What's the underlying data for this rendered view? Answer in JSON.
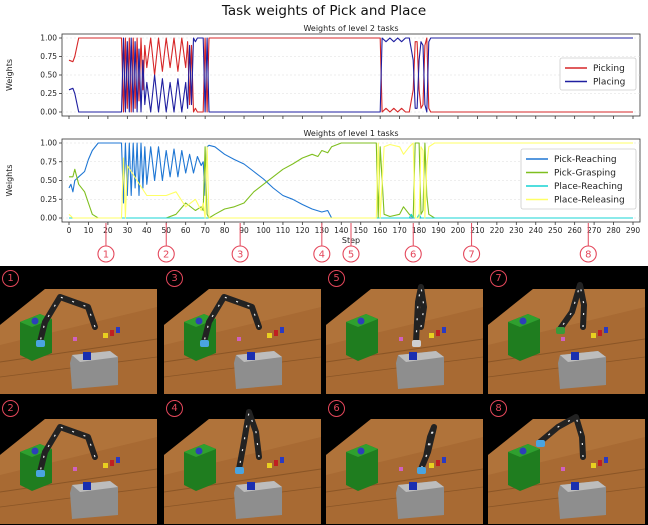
{
  "title": "Task weights of Pick and Place",
  "chart_data": [
    {
      "type": "line",
      "title": "Weights of level 2 tasks",
      "ylabel": "Weights",
      "ylim": [
        0,
        1
      ],
      "yticks": [
        "0.00",
        "0.25",
        "0.50",
        "0.75",
        "1.00"
      ],
      "xlim": [
        0,
        290
      ],
      "legend_position": "right",
      "series": [
        {
          "name": "Picking",
          "color": "#d62728",
          "x": [
            0,
            2,
            3,
            5,
            10,
            20,
            27,
            28,
            29,
            30,
            31,
            32,
            33,
            34,
            35,
            36,
            37,
            38,
            39,
            40,
            42,
            44,
            46,
            48,
            50,
            52,
            54,
            56,
            58,
            60,
            61,
            62,
            63,
            64,
            65,
            66,
            67,
            68,
            69,
            70,
            71,
            72,
            73,
            100,
            150,
            160,
            161,
            163,
            165,
            167,
            169,
            171,
            173,
            175,
            177,
            178,
            179,
            180,
            181,
            182,
            183,
            184,
            185,
            186,
            187,
            188,
            190,
            200,
            250,
            290
          ],
          "values": [
            0.7,
            0.68,
            0.75,
            1.0,
            1.0,
            1.0,
            1.0,
            0.0,
            1.0,
            0.05,
            1.0,
            0.0,
            1.0,
            0.05,
            1.0,
            0.15,
            1.0,
            0.3,
            0.9,
            0.6,
            1.0,
            0.5,
            1.0,
            0.55,
            1.0,
            0.6,
            1.0,
            0.55,
            1.0,
            0.6,
            0.95,
            0.1,
            0.9,
            0.0,
            0.05,
            0.0,
            0.0,
            0.0,
            0.0,
            1.0,
            0.0,
            1.0,
            1.0,
            1.0,
            1.0,
            1.0,
            0.0,
            0.05,
            0.0,
            0.05,
            0.0,
            0.05,
            0.0,
            0.0,
            0.3,
            0.95,
            0.95,
            0.3,
            0.05,
            0.1,
            0.9,
            1.0,
            0.05,
            0.0,
            0.0,
            0.0,
            0.0,
            0.0,
            0.0,
            0.0
          ]
        },
        {
          "name": "Placing",
          "color": "#1f1fa0",
          "x": [
            0,
            2,
            3,
            5,
            10,
            20,
            27,
            28,
            29,
            30,
            31,
            32,
            33,
            34,
            35,
            36,
            37,
            38,
            39,
            40,
            42,
            44,
            46,
            48,
            50,
            52,
            54,
            56,
            58,
            60,
            61,
            62,
            63,
            64,
            65,
            66,
            67,
            68,
            69,
            70,
            71,
            72,
            73,
            100,
            150,
            160,
            161,
            163,
            165,
            167,
            169,
            171,
            173,
            175,
            177,
            178,
            179,
            180,
            181,
            182,
            183,
            184,
            185,
            186,
            187,
            188,
            190,
            200,
            250,
            290
          ],
          "values": [
            0.3,
            0.32,
            0.25,
            0.0,
            0.0,
            0.0,
            0.0,
            1.0,
            0.0,
            0.95,
            0.0,
            1.0,
            0.0,
            0.95,
            0.0,
            0.85,
            0.0,
            0.7,
            0.1,
            0.4,
            0.0,
            0.5,
            0.0,
            0.45,
            0.0,
            0.4,
            0.0,
            0.45,
            0.0,
            0.4,
            0.05,
            0.9,
            0.1,
            1.0,
            0.95,
            1.0,
            1.0,
            1.0,
            1.0,
            0.0,
            1.0,
            0.0,
            0.0,
            0.0,
            0.0,
            0.0,
            1.0,
            0.95,
            1.0,
            0.95,
            1.0,
            0.95,
            1.0,
            1.0,
            0.7,
            0.05,
            0.05,
            0.7,
            0.95,
            0.9,
            0.1,
            0.0,
            0.95,
            1.0,
            1.0,
            1.0,
            1.0,
            1.0,
            1.0,
            1.0
          ]
        }
      ]
    },
    {
      "type": "line",
      "title": "Weights of level 1 tasks",
      "xlabel": "Step",
      "ylabel": "Weights",
      "ylim": [
        0,
        1
      ],
      "yticks": [
        "0.00",
        "0.25",
        "0.50",
        "0.75",
        "1.00"
      ],
      "xlim": [
        0,
        290
      ],
      "xticks": [
        0,
        10,
        20,
        30,
        40,
        50,
        60,
        70,
        80,
        90,
        100,
        110,
        120,
        130,
        140,
        150,
        160,
        170,
        180,
        190,
        200,
        210,
        220,
        230,
        240,
        250,
        260,
        270,
        280,
        290
      ],
      "legend_position": "right",
      "series": [
        {
          "name": "Pick-Reaching",
          "color": "#1f77d4",
          "x": [
            0,
            1,
            2,
            3,
            5,
            8,
            10,
            12,
            15,
            18,
            20,
            25,
            27,
            28,
            29,
            30,
            31,
            32,
            33,
            34,
            35,
            36,
            37,
            38,
            39,
            40,
            42,
            44,
            46,
            48,
            50,
            52,
            54,
            56,
            58,
            60,
            62,
            64,
            66,
            68,
            69,
            70,
            71,
            72,
            75,
            80,
            85,
            90,
            95,
            100,
            105,
            110,
            115,
            120,
            125,
            130,
            133,
            135,
            140,
            150,
            290
          ],
          "values": [
            0.4,
            0.45,
            0.35,
            0.5,
            0.55,
            0.62,
            0.78,
            0.9,
            1.0,
            1.0,
            1.0,
            1.0,
            1.0,
            0.2,
            1.0,
            0.3,
            1.0,
            0.3,
            1.0,
            0.4,
            1.0,
            0.3,
            1.0,
            0.4,
            0.95,
            0.45,
            0.95,
            0.5,
            0.95,
            0.5,
            0.9,
            0.55,
            0.92,
            0.55,
            0.9,
            0.6,
            0.85,
            0.6,
            0.82,
            0.7,
            0.75,
            0.3,
            0.95,
            0.97,
            0.95,
            0.85,
            0.78,
            0.72,
            0.62,
            0.52,
            0.4,
            0.3,
            0.25,
            0.18,
            0.12,
            0.08,
            0.1,
            0.0,
            0.0,
            0.0,
            0.0
          ]
        },
        {
          "name": "Pick-Grasping",
          "color": "#7fbf1f",
          "x": [
            0,
            2,
            3,
            5,
            8,
            10,
            12,
            15,
            20,
            27,
            28,
            29,
            30,
            40,
            50,
            55,
            60,
            65,
            68,
            69,
            70,
            71,
            72,
            75,
            80,
            85,
            90,
            95,
            100,
            105,
            110,
            115,
            120,
            125,
            128,
            130,
            133,
            135,
            140,
            150,
            158,
            159,
            160,
            162,
            165,
            170,
            172,
            175,
            177,
            178,
            180,
            181,
            182,
            183,
            184,
            185,
            188,
            190,
            200,
            250,
            290
          ],
          "values": [
            0.55,
            0.55,
            0.65,
            0.45,
            0.35,
            0.2,
            0.05,
            0.0,
            0.0,
            0.0,
            0.0,
            0.0,
            0.0,
            0.0,
            0.0,
            0.05,
            0.2,
            0.1,
            0.15,
            0.1,
            0.95,
            0.05,
            0.0,
            0.05,
            0.12,
            0.15,
            0.2,
            0.35,
            0.45,
            0.55,
            0.65,
            0.72,
            0.8,
            0.85,
            0.82,
            0.9,
            0.87,
            0.95,
            1.0,
            1.0,
            1.0,
            0.0,
            0.95,
            0.05,
            0.02,
            0.05,
            0.15,
            0.05,
            0.0,
            1.0,
            1.0,
            0.05,
            0.1,
            1.0,
            0.3,
            0.05,
            0.0,
            0.0,
            0.0,
            0.0,
            0.0
          ]
        },
        {
          "name": "Place-Reaching",
          "color": "#17d4d4",
          "x": [
            0,
            100,
            175,
            176,
            177,
            178,
            179,
            180,
            181,
            182,
            183,
            184,
            185,
            186,
            290
          ],
          "values": [
            0.0,
            0.0,
            0.0,
            0.05,
            0.0,
            0.0,
            0.0,
            0.05,
            0.0,
            0.0,
            0.0,
            0.0,
            0.0,
            0.0,
            0.0
          ]
        },
        {
          "name": "Place-Releasing",
          "color": "#ffff66",
          "x": [
            0,
            2,
            3,
            5,
            10,
            15,
            20,
            27,
            28,
            29,
            30,
            40,
            50,
            55,
            60,
            65,
            68,
            69,
            70,
            71,
            72,
            75,
            100,
            150,
            158,
            159,
            160,
            162,
            165,
            170,
            172,
            175,
            177,
            178,
            180,
            181,
            182,
            183,
            184,
            185,
            188,
            190,
            200,
            250,
            290
          ],
          "values": [
            0.05,
            0.0,
            0.0,
            0.0,
            0.0,
            0.0,
            0.0,
            0.0,
            0.8,
            0.0,
            0.7,
            0.3,
            0.3,
            0.35,
            0.15,
            0.25,
            0.1,
            0.2,
            0.0,
            0.95,
            0.0,
            0.0,
            0.0,
            0.0,
            0.0,
            1.0,
            0.0,
            0.95,
            0.98,
            0.95,
            0.85,
            0.95,
            1.0,
            0.0,
            0.0,
            0.95,
            0.9,
            0.0,
            0.7,
            0.95,
            1.0,
            1.0,
            1.0,
            1.0,
            1.0
          ]
        }
      ]
    }
  ],
  "markers": [
    {
      "label": "1",
      "step": 19
    },
    {
      "label": "2",
      "step": 50
    },
    {
      "label": "3",
      "step": 88
    },
    {
      "label": "4",
      "step": 130
    },
    {
      "label": "5",
      "step": 145
    },
    {
      "label": "6",
      "step": 177
    },
    {
      "label": "7",
      "step": 207
    },
    {
      "label": "8",
      "step": 267
    }
  ],
  "scenes": [
    {
      "label": "1",
      "arm": "reach-left",
      "gripper": "blue"
    },
    {
      "label": "3",
      "arm": "reach-left",
      "gripper": "blue"
    },
    {
      "label": "5",
      "arm": "up-right",
      "gripper": "gray"
    },
    {
      "label": "7",
      "arm": "up-high",
      "gripper": "green"
    },
    {
      "label": "2",
      "arm": "reach-left",
      "gripper": "blue"
    },
    {
      "label": "4",
      "arm": "down-center",
      "gripper": "blue"
    },
    {
      "label": "6",
      "arm": "low-right",
      "gripper": "blue"
    },
    {
      "label": "8",
      "arm": "lean-left",
      "gripper": "blue"
    }
  ]
}
